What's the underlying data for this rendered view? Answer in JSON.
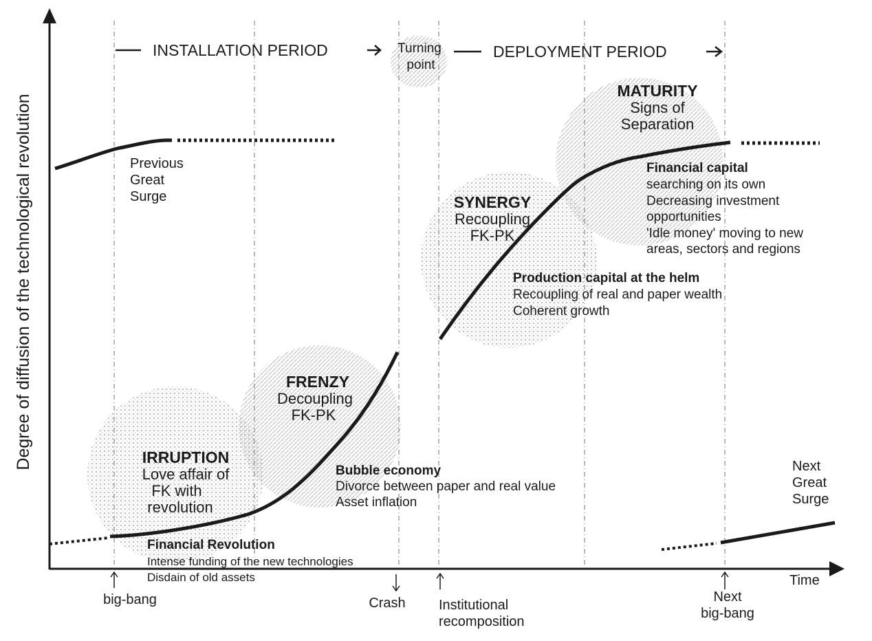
{
  "colors": {
    "ink": "#1a1a1a",
    "guide": "#9a9a9a",
    "blob": "#bdbdbd"
  },
  "axes": {
    "ylabel": "Degree of diffusion of the technological revolution",
    "xlabel": "Time"
  },
  "periods": {
    "installation": "INSTALLATION PERIOD",
    "turning_line1": "Turning",
    "turning_line2": "point",
    "deployment": "DEPLOYMENT PERIOD"
  },
  "previous_surge": {
    "l1": "Previous",
    "l2": "Great",
    "l3": "Surge"
  },
  "next_surge": {
    "l1": "Next",
    "l2": "Great",
    "l3": "Surge"
  },
  "phases": {
    "irruption": {
      "title": "IRRUPTION",
      "l1": "Love affair of",
      "l2": "FK with",
      "l3": "revolution"
    },
    "frenzy": {
      "title": "FRENZY",
      "l1": "Decoupling",
      "l2": "FK-PK"
    },
    "synergy": {
      "title": "SYNERGY",
      "l1": "Recoupling",
      "l2": "FK-PK"
    },
    "maturity": {
      "title": "MATURITY",
      "l1": "Signs of",
      "l2": "Separation"
    }
  },
  "notes": {
    "financial_revolution": {
      "title": "Financial Revolution",
      "l1": "Intense funding of the new technologies",
      "l2": "Disdain of old assets"
    },
    "bubble": {
      "title": "Bubble economy",
      "l1": "Divorce between paper and real value",
      "l2": "Asset inflation"
    },
    "production": {
      "title": "Production capital at the helm",
      "l1": "Recoupling of real and paper wealth",
      "l2": "Coherent growth"
    },
    "financial_capital": {
      "title": "Financial capital",
      "l1": "searching on its own",
      "l2": "Decreasing investment",
      "l3": "opportunities",
      "l4": "'Idle money' moving to new",
      "l5": "areas, sectors and regions"
    }
  },
  "events": {
    "big_bang": "big-bang",
    "crash": "Crash",
    "institutional_l1": "Institutional",
    "institutional_l2": "recomposition",
    "next_bigbang_l1": "Next",
    "next_bigbang_l2": "big-bang"
  }
}
